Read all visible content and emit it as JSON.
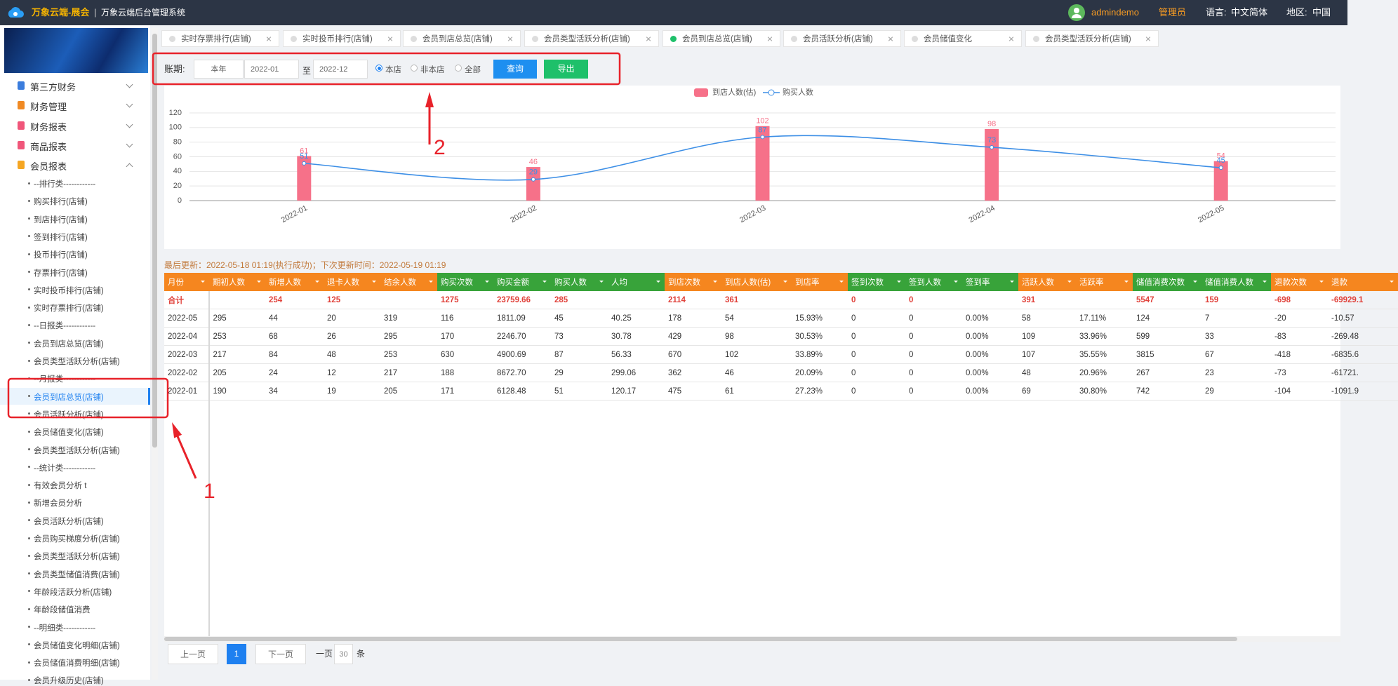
{
  "header": {
    "logo": "万象云端-展会",
    "system": "万象云端后台管理系统",
    "user": "admindemo",
    "role": "管理员",
    "language_label": "语言:",
    "language": "中文简体",
    "region_label": "地区:",
    "region": "中国"
  },
  "sidebar": {
    "groups": [
      {
        "label": "第三方财务"
      },
      {
        "label": "财务管理"
      },
      {
        "label": "财务报表"
      },
      {
        "label": "商品报表"
      },
      {
        "label": "会员报表",
        "items": [
          {
            "label": "--排行类------------"
          },
          {
            "label": "购买排行(店铺)"
          },
          {
            "label": "到店排行(店铺)"
          },
          {
            "label": "签到排行(店铺)"
          },
          {
            "label": "投币排行(店铺)"
          },
          {
            "label": "存票排行(店铺)"
          },
          {
            "label": "实时投币排行(店铺)"
          },
          {
            "label": "实时存票排行(店铺)"
          },
          {
            "label": "--日报类------------"
          },
          {
            "label": "会员到店总览(店铺)"
          },
          {
            "label": "会员类型活跃分析(店铺)"
          },
          {
            "label": "--月报类------------"
          },
          {
            "label": "会员到店总览(店铺)",
            "active": true
          },
          {
            "label": "会员活跃分析(店铺)"
          },
          {
            "label": "会员储值变化(店铺)"
          },
          {
            "label": "会员类型活跃分析(店铺)"
          },
          {
            "label": "--统计类------------"
          },
          {
            "label": "有效会员分析 t"
          },
          {
            "label": "新增会员分析"
          },
          {
            "label": "会员活跃分析(店铺)"
          },
          {
            "label": "会员购买梯度分析(店铺)"
          },
          {
            "label": "会员类型活跃分析(店铺)"
          },
          {
            "label": "会员类型储值消费(店铺)"
          },
          {
            "label": "年龄段活跃分析(店铺)"
          },
          {
            "label": "年龄段储值消费"
          },
          {
            "label": "--明细类------------"
          },
          {
            "label": "会员储值变化明细(店铺)"
          },
          {
            "label": "会员储值消费明细(店铺)"
          },
          {
            "label": "会员升级历史(店铺)"
          }
        ]
      }
    ]
  },
  "tabs": [
    {
      "label": "实时存票排行(店铺)"
    },
    {
      "label": "实时投币排行(店铺)"
    },
    {
      "label": "会员到店总览(店铺)"
    },
    {
      "label": "会员类型活跃分析(店铺)"
    },
    {
      "label": "会员到店总览(店铺)",
      "active": true
    },
    {
      "label": "会员活跃分析(店铺)"
    },
    {
      "label": "会员储值变化"
    },
    {
      "label": "会员类型活跃分析(店铺)"
    }
  ],
  "filter": {
    "label": "账期:",
    "period": "本年",
    "start": "2022-01",
    "to": "至",
    "end": "2022-12",
    "options": [
      {
        "label": "本店",
        "checked": true
      },
      {
        "label": "非本店"
      },
      {
        "label": "全部"
      }
    ],
    "query": "查询",
    "export": "导出"
  },
  "chart_data": {
    "type": "combo",
    "categories": [
      "2022-01",
      "2022-02",
      "2022-03",
      "2022-04",
      "2022-05"
    ],
    "series": [
      {
        "name": "到店人数(估)",
        "type": "bar",
        "color": "#f67189",
        "values": [
          61,
          46,
          102,
          98,
          54
        ]
      },
      {
        "name": "购买人数",
        "type": "line",
        "color": "#3d8fe6",
        "values": [
          51,
          29,
          87,
          73,
          45
        ]
      }
    ],
    "ylim": [
      0,
      120
    ],
    "yticks": [
      0,
      20,
      40,
      60,
      80,
      100,
      120
    ],
    "grid": true
  },
  "update_note": "最后更新：2022-05-18 01:19(执行成功)；下次更新时间：2022-05-19 01:19",
  "table": {
    "columns": [
      {
        "label": "月份",
        "color": "#f5861f"
      },
      {
        "label": "期初人数",
        "color": "#f5861f"
      },
      {
        "label": "新增人数",
        "color": "#f5861f"
      },
      {
        "label": "退卡人数",
        "color": "#f5861f"
      },
      {
        "label": "结余人数",
        "color": "#f5861f"
      },
      {
        "label": "购买次数",
        "color": "#38a33a"
      },
      {
        "label": "购买金额",
        "color": "#38a33a"
      },
      {
        "label": "购买人数",
        "color": "#38a33a"
      },
      {
        "label": "人均",
        "color": "#38a33a"
      },
      {
        "label": "到店次数",
        "color": "#f5861f"
      },
      {
        "label": "到店人数(估)",
        "color": "#f5861f"
      },
      {
        "label": "到店率",
        "color": "#f5861f"
      },
      {
        "label": "签到次数",
        "color": "#38a33a"
      },
      {
        "label": "签到人数",
        "color": "#38a33a"
      },
      {
        "label": "签到率",
        "color": "#38a33a"
      },
      {
        "label": "活跃人数",
        "color": "#f5861f"
      },
      {
        "label": "活跃率",
        "color": "#f5861f"
      },
      {
        "label": "储值消费次数",
        "color": "#38a33a"
      },
      {
        "label": "储值消费人数",
        "color": "#38a33a"
      },
      {
        "label": "退款次数",
        "color": "#f5861f"
      },
      {
        "label": "退款",
        "color": "#f5861f"
      }
    ],
    "total": [
      "合计",
      null,
      "254",
      "125",
      null,
      "1275",
      "23759.66",
      "285",
      null,
      "2114",
      "361",
      null,
      "0",
      "0",
      null,
      "391",
      null,
      "5547",
      "159",
      "-698",
      "-69929.1"
    ],
    "rows": [
      [
        "2022-05",
        "295",
        "44",
        "20",
        "319",
        "116",
        "1811.09",
        "45",
        "40.25",
        "178",
        "54",
        "15.93%",
        "0",
        "0",
        "0.00%",
        "58",
        "17.11%",
        "124",
        "7",
        "-20",
        "-10.57"
      ],
      [
        "2022-04",
        "253",
        "68",
        "26",
        "295",
        "170",
        "2246.70",
        "73",
        "30.78",
        "429",
        "98",
        "30.53%",
        "0",
        "0",
        "0.00%",
        "109",
        "33.96%",
        "599",
        "33",
        "-83",
        "-269.48"
      ],
      [
        "2022-03",
        "217",
        "84",
        "48",
        "253",
        "630",
        "4900.69",
        "87",
        "56.33",
        "670",
        "102",
        "33.89%",
        "0",
        "0",
        "0.00%",
        "107",
        "35.55%",
        "3815",
        "67",
        "-418",
        "-6835.6"
      ],
      [
        "2022-02",
        "205",
        "24",
        "12",
        "217",
        "188",
        "8672.70",
        "29",
        "299.06",
        "362",
        "46",
        "20.09%",
        "0",
        "0",
        "0.00%",
        "48",
        "20.96%",
        "267",
        "23",
        "-73",
        "-61721."
      ],
      [
        "2022-01",
        "190",
        "34",
        "19",
        "205",
        "171",
        "6128.48",
        "51",
        "120.17",
        "475",
        "61",
        "27.23%",
        "0",
        "0",
        "0.00%",
        "69",
        "30.80%",
        "742",
        "29",
        "-104",
        "-1091.9"
      ]
    ]
  },
  "pagination": {
    "prev": "上一页",
    "page": 1,
    "next": "下一页",
    "per_page_label": "一页",
    "per_page": 30,
    "unit": "条"
  },
  "annotations": [
    1,
    2
  ]
}
